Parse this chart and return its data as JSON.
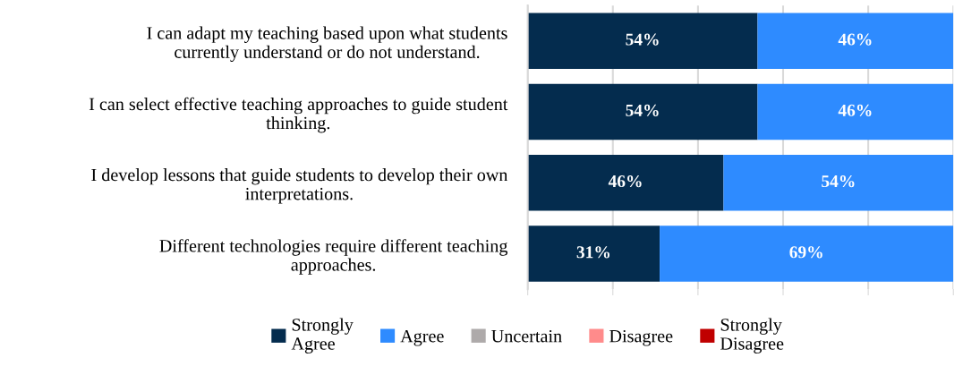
{
  "chart_data": {
    "type": "bar",
    "orientation": "horizontal",
    "stacked": true,
    "categories": [
      "I can adapt my teaching based upon what students\ncurrently understand or do not understand.",
      "I can select effective teaching approaches to guide student\nthinking.",
      "I develop lessons that guide students to develop their own\ninterpretations.",
      "Different technologies require different teaching\napproaches."
    ],
    "series": [
      {
        "name": "Strongly\nAgree",
        "color": "#042c4e",
        "values": [
          54,
          54,
          46,
          31
        ],
        "value_labels": [
          "54%",
          "54%",
          "46%",
          "31%"
        ]
      },
      {
        "name": "Agree",
        "color": "#2e8bff",
        "values": [
          46,
          46,
          54,
          69
        ],
        "value_labels": [
          "46%",
          "46%",
          "54%",
          "69%"
        ]
      },
      {
        "name": "Uncertain",
        "color": "#aeaaaa",
        "values": [
          0,
          0,
          0,
          0
        ]
      },
      {
        "name": "Disagree",
        "color": "#ff8b8b",
        "values": [
          0,
          0,
          0,
          0
        ]
      },
      {
        "name": "Strongly\nDisagree",
        "color": "#c00000",
        "values": [
          0,
          0,
          0,
          0
        ]
      }
    ],
    "xlim": [
      0,
      100
    ],
    "xticks": [
      {
        "value": 0,
        "label": null
      },
      {
        "value": 20,
        "label": null
      },
      {
        "value": 40,
        "label": null
      },
      {
        "value": 60,
        "label": null
      },
      {
        "value": 80,
        "label": null
      },
      {
        "value": 100,
        "label": null
      }
    ],
    "tick_labels": "y",
    "grid": "x",
    "legend": "bottom"
  }
}
